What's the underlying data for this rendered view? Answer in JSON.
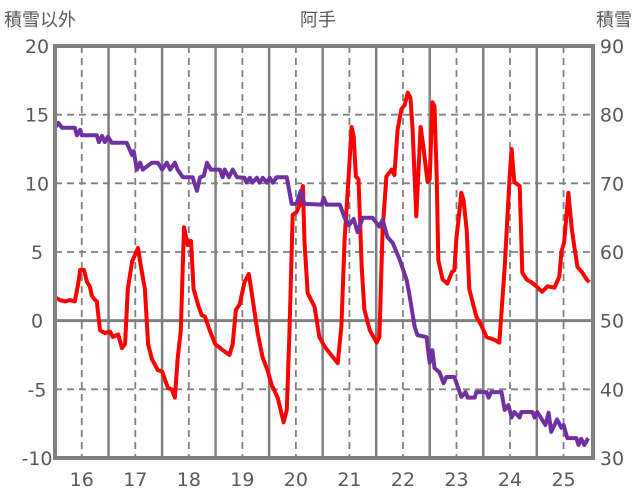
{
  "chart_data": {
    "type": "line",
    "title": "阿手",
    "ylabel": "積雪以外",
    "y2label": "積雪",
    "xlim": [
      15.5,
      25.55
    ],
    "ylim": [
      -10,
      20
    ],
    "y2lim": [
      30,
      90
    ],
    "yticks": [
      "20",
      "15",
      "10",
      "5",
      "0",
      "-5",
      "-10"
    ],
    "yticks_values": [
      20,
      15,
      10,
      5,
      0,
      -5,
      -10
    ],
    "y2ticks": [
      "90",
      "80",
      "70",
      "60",
      "50",
      "40",
      "30"
    ],
    "y2ticks_values": [
      90,
      80,
      70,
      60,
      50,
      40,
      30
    ],
    "xticks": [
      "16",
      "17",
      "18",
      "19",
      "20",
      "21",
      "22",
      "23",
      "24",
      "25"
    ],
    "xticks_values": [
      16,
      17,
      18,
      19,
      20,
      21,
      22,
      23,
      24,
      25
    ],
    "grid": true,
    "series": [
      {
        "name": "積雪以外",
        "axis": "left",
        "color": "#ff0000",
        "x": [
          15.5,
          15.59,
          15.69,
          15.78,
          15.87,
          15.93,
          15.97,
          16.04,
          16.1,
          16.15,
          16.19,
          16.25,
          16.28,
          16.34,
          16.43,
          16.53,
          16.58,
          16.68,
          16.75,
          16.81,
          16.86,
          16.94,
          17.05,
          17.09,
          17.18,
          17.24,
          17.31,
          17.42,
          17.5,
          17.61,
          17.68,
          17.74,
          17.79,
          17.85,
          17.91,
          17.98,
          18.04,
          18.09,
          18.17,
          18.24,
          18.3,
          18.39,
          18.49,
          18.62,
          18.76,
          18.82,
          18.88,
          18.95,
          19.04,
          19.12,
          19.18,
          19.29,
          19.38,
          19.47,
          19.55,
          19.66,
          19.77,
          19.83,
          19.88,
          19.94,
          20.01,
          20.07,
          20.13,
          20.16,
          20.22,
          20.35,
          20.44,
          20.54,
          20.78,
          20.85,
          20.91,
          20.99,
          21.04,
          21.08,
          21.12,
          21.17,
          21.23,
          21.28,
          21.38,
          21.51,
          21.56,
          21.62,
          21.69,
          21.79,
          21.84,
          21.9,
          21.97,
          22.03,
          22.09,
          22.14,
          22.18,
          22.25,
          22.33,
          22.38,
          22.46,
          22.5,
          22.55,
          22.59,
          22.63,
          22.66,
          22.74,
          22.83,
          22.91,
          22.96,
          23.0,
          23.04,
          23.09,
          23.13,
          23.19,
          23.24,
          23.37,
          23.47,
          23.56,
          23.71,
          23.8,
          23.84,
          23.9,
          23.99,
          24.03,
          24.08,
          24.18,
          24.23,
          24.31,
          24.4,
          24.49,
          24.6,
          24.7,
          24.83,
          24.92,
          24.96,
          25.01,
          25.09,
          25.15,
          25.2,
          25.26,
          25.35,
          25.43,
          25.48
        ],
        "values": [
          1.7,
          1.5,
          1.4,
          1.5,
          1.4,
          2.6,
          3.7,
          3.7,
          2.8,
          2.5,
          1.8,
          1.5,
          1.4,
          -0.7,
          -0.9,
          -0.8,
          -1.2,
          -1.0,
          -2.0,
          -1.7,
          2.3,
          4.3,
          5.3,
          4.3,
          2.3,
          -1.7,
          -2.8,
          -3.6,
          -3.7,
          -4.9,
          -5.0,
          -5.6,
          -2.8,
          -0.7,
          6.8,
          5.5,
          5.8,
          2.3,
          1.2,
          0.4,
          0.3,
          -0.7,
          -1.7,
          -2.1,
          -2.5,
          -1.7,
          0.8,
          1.2,
          2.8,
          3.4,
          1.9,
          -1.0,
          -2.7,
          -3.6,
          -4.7,
          -5.6,
          -7.4,
          -6.5,
          -0.7,
          7.7,
          7.9,
          8.4,
          9.8,
          5.7,
          2.0,
          1.0,
          -1.2,
          -1.9,
          -3.1,
          -0.4,
          5.9,
          10.8,
          14.1,
          13.4,
          10.5,
          10.3,
          3.9,
          0.8,
          -0.7,
          -1.6,
          -1.2,
          6.6,
          10.5,
          11.0,
          10.6,
          13.9,
          15.4,
          15.7,
          16.6,
          16.2,
          13.9,
          7.6,
          14.1,
          12.7,
          10.1,
          10.3,
          15.9,
          15.6,
          10.5,
          4.4,
          3.0,
          2.7,
          3.5,
          3.7,
          6.1,
          7.4,
          9.3,
          8.8,
          6.6,
          2.3,
          0.3,
          -0.4,
          -1.2,
          -1.4,
          -1.6,
          0.6,
          3.9,
          10.3,
          12.5,
          10.1,
          9.8,
          3.5,
          3.0,
          2.8,
          2.5,
          2.1,
          2.5,
          2.4,
          3.2,
          5.0,
          5.7,
          9.3,
          6.8,
          5.4,
          3.9,
          3.5,
          3.0,
          2.8
        ]
      },
      {
        "name": "積雪",
        "axis": "right",
        "color": "#7030a0",
        "x": [
          15.5,
          15.56,
          15.63,
          15.87,
          15.91,
          15.97,
          16.0,
          16.28,
          16.32,
          16.38,
          16.43,
          16.49,
          16.56,
          16.84,
          16.94,
          16.97,
          17.03,
          17.09,
          17.14,
          17.31,
          17.42,
          17.5,
          17.59,
          17.65,
          17.74,
          17.79,
          17.89,
          18.07,
          18.15,
          18.21,
          18.28,
          18.34,
          18.41,
          18.58,
          18.63,
          18.67,
          18.75,
          18.82,
          18.9,
          19.04,
          19.08,
          19.14,
          19.19,
          19.27,
          19.32,
          19.38,
          19.46,
          19.51,
          19.57,
          19.64,
          19.83,
          19.92,
          20.01,
          20.09,
          20.16,
          20.48,
          20.52,
          20.57,
          20.82,
          20.91,
          20.99,
          21.08,
          21.15,
          21.25,
          21.43,
          21.56,
          21.62,
          21.71,
          21.81,
          21.94,
          22.07,
          22.12,
          22.22,
          22.27,
          22.44,
          22.5,
          22.55,
          22.59,
          22.68,
          22.76,
          22.81,
          22.96,
          23.09,
          23.17,
          23.21,
          23.34,
          23.37,
          23.56,
          23.6,
          23.65,
          23.84,
          23.9,
          23.97,
          24.03,
          24.08,
          24.18,
          24.21,
          24.42,
          24.46,
          24.51,
          24.66,
          24.72,
          24.77,
          24.88,
          24.96,
          25.0,
          25.07,
          25.24,
          25.28,
          25.33,
          25.39,
          25.46
        ],
        "values": [
          78.1,
          78.8,
          78.1,
          78.1,
          77.0,
          77.8,
          77.0,
          77.0,
          76.0,
          76.9,
          76.0,
          76.8,
          75.9,
          75.9,
          74.1,
          74.7,
          72.0,
          73.0,
          72.0,
          73.0,
          73.0,
          72.0,
          73.0,
          72.0,
          73.0,
          72.0,
          70.9,
          70.9,
          68.9,
          70.9,
          71.1,
          73.0,
          72.0,
          72.0,
          70.9,
          72.0,
          70.9,
          72.0,
          70.9,
          70.8,
          70.1,
          70.8,
          70.1,
          70.8,
          70.1,
          70.8,
          70.1,
          70.8,
          70.1,
          70.9,
          70.9,
          67.0,
          67.0,
          68.9,
          67.0,
          66.9,
          67.9,
          66.9,
          66.9,
          65.0,
          63.9,
          64.8,
          62.9,
          65.0,
          65.0,
          63.7,
          64.7,
          62.2,
          61.3,
          58.9,
          55.9,
          53.8,
          49.1,
          47.9,
          47.6,
          43.9,
          45.7,
          43.1,
          42.5,
          40.9,
          41.8,
          41.8,
          38.9,
          39.6,
          38.8,
          38.8,
          39.6,
          39.6,
          38.8,
          39.6,
          39.6,
          37.0,
          37.7,
          35.9,
          36.7,
          35.9,
          36.7,
          36.7,
          35.9,
          36.7,
          34.8,
          36.6,
          33.8,
          35.6,
          34.4,
          34.8,
          32.9,
          32.9,
          31.9,
          32.8,
          31.9,
          32.9
        ]
      }
    ]
  }
}
